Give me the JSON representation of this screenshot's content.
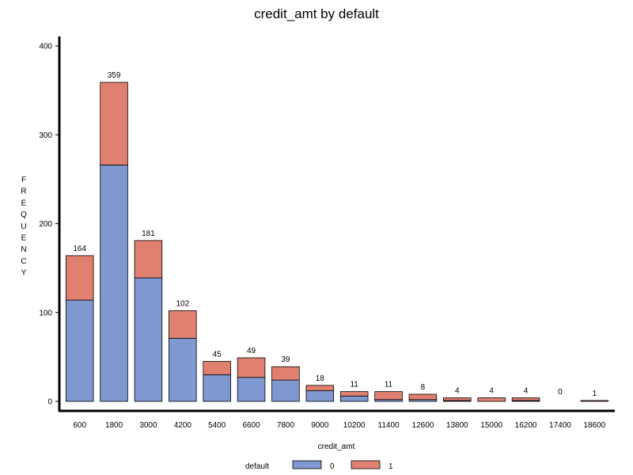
{
  "chart_data": {
    "type": "bar",
    "stacked": true,
    "title": "credit_amt by default",
    "xlabel": "credit_amt",
    "ylabel": "FREQUENCY",
    "ylim": [
      0,
      410
    ],
    "yticks": [
      0,
      100,
      200,
      300,
      400
    ],
    "categories": [
      "600",
      "1800",
      "3000",
      "4200",
      "5400",
      "6600",
      "7800",
      "9000",
      "10200",
      "11400",
      "12600",
      "13800",
      "15000",
      "16200",
      "17400",
      "18600"
    ],
    "series": [
      {
        "name": "0",
        "color": "#7f98cf",
        "values": [
          114,
          266,
          139,
          71,
          30,
          27,
          24,
          12,
          6,
          2,
          2,
          1,
          0,
          1,
          0,
          0
        ]
      },
      {
        "name": "1",
        "color": "#e08070",
        "values": [
          50,
          93,
          42,
          31,
          15,
          22,
          15,
          6,
          5,
          9,
          6,
          3,
          4,
          3,
          0,
          1
        ]
      }
    ],
    "totals": [
      "164",
      "359",
      "181",
      "102",
      "45",
      "49",
      "39",
      "18",
      "11",
      "11",
      "8",
      "4",
      "4",
      "4",
      "0",
      "1"
    ],
    "legend": {
      "title": "default",
      "position": "bottom",
      "items": [
        "0",
        "1"
      ]
    },
    "grid": false
  }
}
